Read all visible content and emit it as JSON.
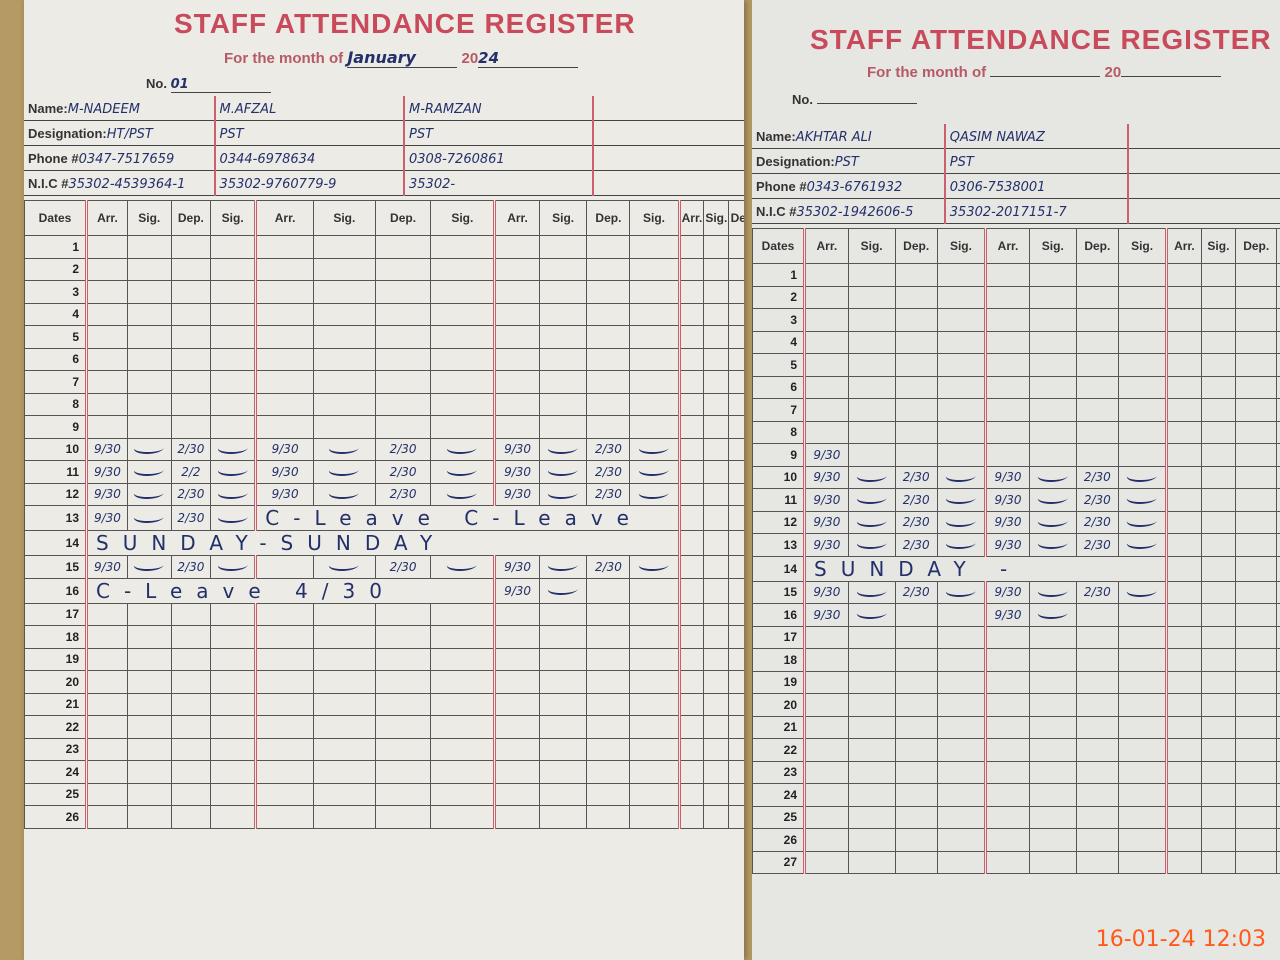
{
  "register_title": "STAFF ATTENDANCE REGISTER",
  "month_label": "For the month of",
  "year_prefix": "20",
  "no_label": "No.",
  "labels": {
    "name": "Name:",
    "designation": "Designation:",
    "phone": "Phone #",
    "nic": "N.I.C #"
  },
  "columns": {
    "dates": "Dates",
    "group": [
      "Arr.",
      "Sig.",
      "Dep.",
      "Sig."
    ]
  },
  "left_page": {
    "month": "January",
    "year": "24",
    "no": "01",
    "staff": [
      {
        "name": "M-NADEEM",
        "designation": "HT/PST",
        "phone": "0347-7517659",
        "nic": "35302-4539364-1"
      },
      {
        "name": "M.AFZAL",
        "designation": "PST",
        "phone": "0344-6978634",
        "nic": "35302-9760779-9"
      },
      {
        "name": "M-RAMZAN",
        "designation": "PST",
        "phone": "0308-7260861",
        "nic": "35302-"
      },
      {
        "name": "",
        "designation": "",
        "phone": "",
        "nic": ""
      }
    ],
    "row_count": 26,
    "entries": {
      "10": [
        "9/30",
        "*",
        "2/30",
        "*",
        "9/30",
        "*",
        "2/30",
        "*",
        "9/30",
        "*",
        "2/30",
        "*"
      ],
      "11": [
        "9/30",
        "*",
        "2/2",
        "*",
        "9/30",
        "*",
        "2/30",
        "*",
        "9/30",
        "*",
        "2/30",
        "*"
      ],
      "12": [
        "9/30",
        "*",
        "2/30",
        "*",
        "9/30",
        "*",
        "2/30",
        "*",
        "9/30",
        "*",
        "2/30",
        "*"
      ],
      "13": [
        "9/30",
        "*",
        "2/30",
        "*"
      ],
      "15": [
        "9/30",
        "*",
        "2/30",
        "*",
        "",
        "*",
        "2/30",
        "*",
        "9/30",
        "*",
        "2/30",
        "*"
      ],
      "16": [
        "",
        "",
        "",
        "",
        "",
        "",
        "",
        "",
        "9/30",
        "*"
      ]
    },
    "spans": {
      "13": {
        "start": 4,
        "len": 8,
        "text": "C-Leave C-Leave"
      },
      "14": {
        "start": 0,
        "len": 12,
        "text": "SUNDAY-SUNDAY"
      },
      "16": {
        "start": 0,
        "len": 8,
        "text": "C-Leave 4/30"
      }
    }
  },
  "right_page": {
    "month": "",
    "year": "",
    "no": "",
    "staff": [
      {
        "name": "AKHTAR ALI",
        "designation": "PST",
        "phone": "0343-6761932",
        "nic": "35302-1942606-5"
      },
      {
        "name": "QASIM NAWAZ",
        "designation": "PST",
        "phone": "0306-7538001",
        "nic": "35302-2017151-7"
      },
      {
        "name": "",
        "designation": "",
        "phone": "",
        "nic": ""
      }
    ],
    "row_count": 27,
    "entries": {
      "9": [
        "9/30"
      ],
      "10": [
        "9/30",
        "*",
        "2/30",
        "*",
        "9/30",
        "*",
        "2/30",
        "*"
      ],
      "11": [
        "9/30",
        "*",
        "2/30",
        "*",
        "9/30",
        "*",
        "2/30",
        "*"
      ],
      "12": [
        "9/30",
        "*",
        "2/30",
        "*",
        "9/30",
        "*",
        "2/30",
        "*"
      ],
      "13": [
        "9/30",
        "*",
        "2/30",
        "*",
        "9/30",
        "*",
        "2/30",
        "*"
      ],
      "15": [
        "9/30",
        "*",
        "2/30",
        "*",
        "9/30",
        "*",
        "2/30",
        "*"
      ],
      "16": [
        "9/30",
        "*",
        "",
        "",
        "9/30",
        "*"
      ]
    },
    "spans": {
      "14": {
        "start": 0,
        "len": 8,
        "text": "SUNDAY -"
      }
    }
  },
  "camera_timestamp": "16-01-24  12:03",
  "colors": {
    "ink": "#23306a",
    "print_red": "#c94a5a",
    "timestamp": "#ff5a1a"
  }
}
